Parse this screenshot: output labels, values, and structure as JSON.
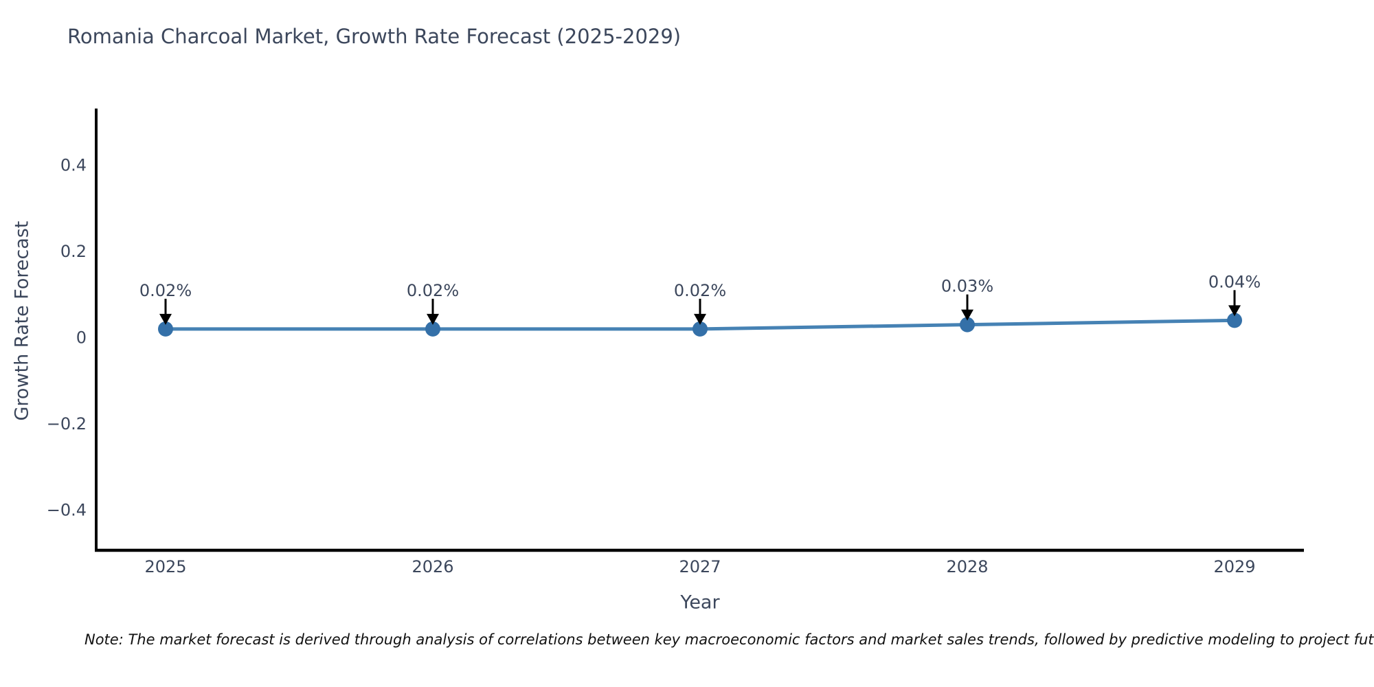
{
  "note": "Note: The market forecast is derived through analysis of correlations between key macroeconomic factors and market sales trends, followed by predictive modeling to project future sa",
  "chart_data": {
    "type": "line",
    "title": "Romania Charcoal Market, Growth Rate Forecast (2025-2029)",
    "xlabel": "Year",
    "ylabel": "Growth Rate Forecast",
    "categories": [
      "2025",
      "2026",
      "2027",
      "2028",
      "2029"
    ],
    "series": [
      {
        "name": "Growth Rate Forecast",
        "values": [
          0.02,
          0.02,
          0.02,
          0.03,
          0.04
        ],
        "point_labels": [
          "0.02%",
          "0.02%",
          "0.02%",
          "0.03%",
          "0.04%"
        ]
      }
    ],
    "ylim": [
      -0.493,
      0.531
    ],
    "yticks": [
      {
        "value": 0.4,
        "label": "0.4"
      },
      {
        "value": 0.2,
        "label": "0.2"
      },
      {
        "value": 0,
        "label": "0"
      },
      {
        "value": -0.2,
        "label": "−0.2"
      },
      {
        "value": -0.4,
        "label": "−0.4"
      }
    ],
    "grid": false,
    "legend": false,
    "colors": {
      "line": "#4682b4",
      "marker": "#3470a8",
      "arrow": "#000000",
      "axis": "#000000",
      "text": "#3c475c",
      "note_text": "#111111"
    }
  }
}
